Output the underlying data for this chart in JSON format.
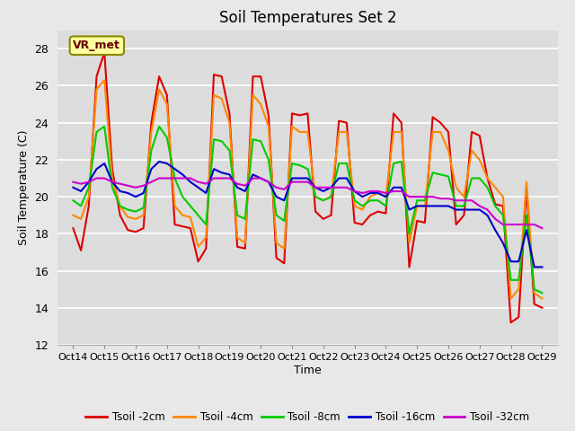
{
  "title": "Soil Temperatures Set 2",
  "xlabel": "Time",
  "ylabel": "Soil Temperature (C)",
  "ylim": [
    12,
    29
  ],
  "yticks": [
    12,
    14,
    16,
    18,
    20,
    22,
    24,
    26,
    28
  ],
  "xlim": [
    -0.5,
    15.5
  ],
  "annotation_text": "VR_met",
  "bg_color": "#e8e8e8",
  "series": {
    "Tsoil -2cm": {
      "color": "#dd0000",
      "x": [
        0,
        0.25,
        0.5,
        0.75,
        1,
        1.25,
        1.5,
        1.75,
        2,
        2.25,
        2.5,
        2.75,
        3,
        3.25,
        3.5,
        3.75,
        4,
        4.25,
        4.5,
        4.75,
        5,
        5.25,
        5.5,
        5.75,
        6,
        6.25,
        6.5,
        6.75,
        7,
        7.25,
        7.5,
        7.75,
        8,
        8.25,
        8.5,
        8.75,
        9,
        9.25,
        9.5,
        9.75,
        10,
        10.25,
        10.5,
        10.75,
        11,
        11.25,
        11.5,
        11.75,
        12,
        12.25,
        12.5,
        12.75,
        13,
        13.25,
        13.5,
        13.75,
        14,
        14.25,
        14.5,
        14.75,
        15
      ],
      "y": [
        18.3,
        17.1,
        19.5,
        26.5,
        27.8,
        21.5,
        19.0,
        18.2,
        18.1,
        18.3,
        24.0,
        26.5,
        25.5,
        18.5,
        18.4,
        18.3,
        16.5,
        17.2,
        26.6,
        26.5,
        24.5,
        17.3,
        17.2,
        26.5,
        26.5,
        24.4,
        16.7,
        16.4,
        24.5,
        24.4,
        24.5,
        19.2,
        18.8,
        19.0,
        24.1,
        24.0,
        18.6,
        18.5,
        19.0,
        19.2,
        19.1,
        24.5,
        24.0,
        16.2,
        18.7,
        18.6,
        24.3,
        24.0,
        23.5,
        18.5,
        19.0,
        23.5,
        23.3,
        21.0,
        19.6,
        19.5,
        13.2,
        13.5,
        20.5,
        14.2,
        14.0
      ]
    },
    "Tsoil -4cm": {
      "color": "#ff8800",
      "x": [
        0,
        0.25,
        0.5,
        0.75,
        1,
        1.25,
        1.5,
        1.75,
        2,
        2.25,
        2.5,
        2.75,
        3,
        3.25,
        3.5,
        3.75,
        4,
        4.25,
        4.5,
        4.75,
        5,
        5.25,
        5.5,
        5.75,
        6,
        6.25,
        6.5,
        6.75,
        7,
        7.25,
        7.5,
        7.75,
        8,
        8.25,
        8.5,
        8.75,
        9,
        9.25,
        9.5,
        9.75,
        10,
        10.25,
        10.5,
        10.75,
        11,
        11.25,
        11.5,
        11.75,
        12,
        12.25,
        12.5,
        12.75,
        13,
        13.25,
        13.5,
        13.75,
        14,
        14.25,
        14.5,
        14.75,
        15
      ],
      "y": [
        19.0,
        18.8,
        20.0,
        25.8,
        26.3,
        21.0,
        19.5,
        18.9,
        18.8,
        19.0,
        23.5,
        25.8,
        25.0,
        19.5,
        19.0,
        18.9,
        17.3,
        17.8,
        25.5,
        25.3,
        24.0,
        17.8,
        17.5,
        25.5,
        25.0,
        23.8,
        17.5,
        17.2,
        23.8,
        23.5,
        23.5,
        20.0,
        19.8,
        20.0,
        23.5,
        23.5,
        19.5,
        19.3,
        20.0,
        20.2,
        20.0,
        23.5,
        23.5,
        17.5,
        19.5,
        19.5,
        23.5,
        23.5,
        22.5,
        20.5,
        20.0,
        22.5,
        22.0,
        21.0,
        20.5,
        20.0,
        14.5,
        15.0,
        20.8,
        14.8,
        14.5
      ]
    },
    "Tsoil -8cm": {
      "color": "#00cc00",
      "x": [
        0,
        0.25,
        0.5,
        0.75,
        1,
        1.25,
        1.5,
        1.75,
        2,
        2.25,
        2.5,
        2.75,
        3,
        3.25,
        3.5,
        3.75,
        4,
        4.25,
        4.5,
        4.75,
        5,
        5.25,
        5.5,
        5.75,
        6,
        6.25,
        6.5,
        6.75,
        7,
        7.25,
        7.5,
        7.75,
        8,
        8.25,
        8.5,
        8.75,
        9,
        9.25,
        9.5,
        9.75,
        10,
        10.25,
        10.5,
        10.75,
        11,
        11.25,
        11.5,
        11.75,
        12,
        12.25,
        12.5,
        12.75,
        13,
        13.25,
        13.5,
        13.75,
        14,
        14.25,
        14.5,
        14.75,
        15
      ],
      "y": [
        19.8,
        19.5,
        20.5,
        23.5,
        23.8,
        20.5,
        19.5,
        19.3,
        19.2,
        19.4,
        22.5,
        23.8,
        23.2,
        21.0,
        20.0,
        19.5,
        19.0,
        18.5,
        23.1,
        23.0,
        22.5,
        19.0,
        18.8,
        23.1,
        23.0,
        22.0,
        19.0,
        18.7,
        21.8,
        21.7,
        21.5,
        20.0,
        19.8,
        20.0,
        21.8,
        21.8,
        19.8,
        19.5,
        19.8,
        19.8,
        19.5,
        21.8,
        21.9,
        18.0,
        19.8,
        19.8,
        21.3,
        21.2,
        21.1,
        19.5,
        19.5,
        21.0,
        21.0,
        20.5,
        19.5,
        19.0,
        15.5,
        15.5,
        19.0,
        15.0,
        14.8
      ]
    },
    "Tsoil -16cm": {
      "color": "#0000cc",
      "x": [
        0,
        0.25,
        0.5,
        0.75,
        1,
        1.25,
        1.5,
        1.75,
        2,
        2.25,
        2.5,
        2.75,
        3,
        3.25,
        3.5,
        3.75,
        4,
        4.25,
        4.5,
        4.75,
        5,
        5.25,
        5.5,
        5.75,
        6,
        6.25,
        6.5,
        6.75,
        7,
        7.25,
        7.5,
        7.75,
        8,
        8.25,
        8.5,
        8.75,
        9,
        9.25,
        9.5,
        9.75,
        10,
        10.25,
        10.5,
        10.75,
        11,
        11.25,
        11.5,
        11.75,
        12,
        12.25,
        12.5,
        12.75,
        13,
        13.25,
        13.5,
        13.75,
        14,
        14.25,
        14.5,
        14.75,
        15
      ],
      "y": [
        20.5,
        20.3,
        20.8,
        21.5,
        21.8,
        20.8,
        20.3,
        20.2,
        20.0,
        20.2,
        21.5,
        21.9,
        21.8,
        21.5,
        21.2,
        20.8,
        20.5,
        20.2,
        21.5,
        21.3,
        21.2,
        20.5,
        20.3,
        21.2,
        21.0,
        20.8,
        20.0,
        19.8,
        21.0,
        21.0,
        21.0,
        20.5,
        20.3,
        20.5,
        21.0,
        21.0,
        20.3,
        20.0,
        20.2,
        20.2,
        20.0,
        20.5,
        20.5,
        19.3,
        19.5,
        19.5,
        19.5,
        19.5,
        19.5,
        19.3,
        19.3,
        19.3,
        19.3,
        19.0,
        18.2,
        17.5,
        16.5,
        16.5,
        18.2,
        16.2,
        16.2
      ]
    },
    "Tsoil -32cm": {
      "color": "#cc00cc",
      "x": [
        0,
        0.25,
        0.5,
        0.75,
        1,
        1.25,
        1.5,
        1.75,
        2,
        2.25,
        2.5,
        2.75,
        3,
        3.25,
        3.5,
        3.75,
        4,
        4.25,
        4.5,
        4.75,
        5,
        5.25,
        5.5,
        5.75,
        6,
        6.25,
        6.5,
        6.75,
        7,
        7.25,
        7.5,
        7.75,
        8,
        8.25,
        8.5,
        8.75,
        9,
        9.25,
        9.5,
        9.75,
        10,
        10.25,
        10.5,
        10.75,
        11,
        11.25,
        11.5,
        11.75,
        12,
        12.25,
        12.5,
        12.75,
        13,
        13.25,
        13.5,
        13.75,
        14,
        14.25,
        14.5,
        14.75,
        15
      ],
      "y": [
        20.8,
        20.7,
        20.8,
        21.0,
        21.0,
        20.8,
        20.7,
        20.6,
        20.5,
        20.6,
        20.8,
        21.0,
        21.0,
        21.0,
        21.0,
        21.0,
        20.8,
        20.7,
        21.0,
        21.0,
        21.0,
        20.7,
        20.6,
        21.0,
        21.0,
        20.8,
        20.5,
        20.4,
        20.8,
        20.8,
        20.8,
        20.5,
        20.5,
        20.5,
        20.5,
        20.5,
        20.3,
        20.2,
        20.3,
        20.3,
        20.2,
        20.3,
        20.3,
        20.0,
        20.0,
        20.0,
        20.0,
        19.9,
        19.9,
        19.8,
        19.8,
        19.8,
        19.5,
        19.3,
        18.8,
        18.5,
        18.5,
        18.5,
        18.5,
        18.5,
        18.3
      ]
    }
  },
  "xtick_labels": [
    "Oct 14",
    "Oct 15",
    "Oct 16",
    "Oct 17",
    "Oct 18",
    "Oct 19",
    "Oct 20",
    "Oct 21",
    "Oct 22",
    "Oct 23",
    "Oct 24",
    "Oct 25",
    "Oct 26",
    "Oct 27",
    "Oct 28",
    "Oct 29"
  ]
}
